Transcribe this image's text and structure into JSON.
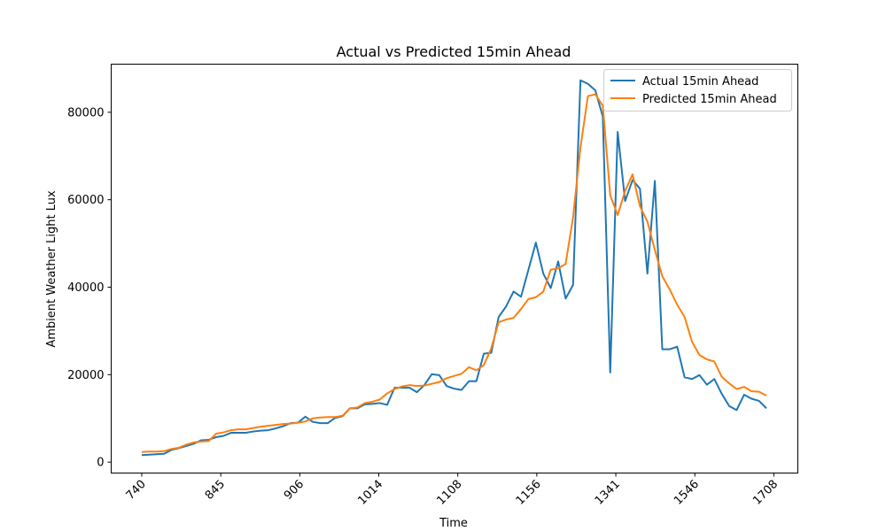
{
  "chart_data": {
    "type": "line",
    "title": "Actual vs Predicted 15min Ahead",
    "xlabel": "Time",
    "ylabel": "Ambient Weather Light Lux",
    "x_tick_labels": [
      "740",
      "845",
      "906",
      "1014",
      "1108",
      "1156",
      "1341",
      "1546",
      "1708"
    ],
    "x_tick_rotation_deg": 45,
    "ylim": [
      -2500,
      91000
    ],
    "y_ticks": [
      0,
      20000,
      40000,
      60000,
      80000
    ],
    "y_tick_labels": [
      "0",
      "20000",
      "40000",
      "60000",
      "80000"
    ],
    "legend_position": "top-right",
    "series": [
      {
        "name": "Actual 15min Ahead",
        "color": "#1f77b4",
        "values": [
          1600,
          1700,
          1800,
          1900,
          2800,
          3200,
          3700,
          4200,
          5000,
          5100,
          5700,
          6000,
          6700,
          6700,
          6700,
          7000,
          7200,
          7300,
          7700,
          8200,
          8900,
          9000,
          10400,
          9200,
          8900,
          8900,
          10100,
          10500,
          12300,
          12300,
          13200,
          13300,
          13500,
          13100,
          17000,
          17000,
          17000,
          16000,
          17600,
          20100,
          19900,
          17400,
          16800,
          16500,
          18500,
          18500,
          24800,
          25000,
          33200,
          35600,
          39000,
          37800,
          44000,
          50200,
          43100,
          39800,
          45900,
          37400,
          40500,
          87300,
          86500,
          85000,
          79000,
          20500,
          75500,
          59700,
          64500,
          62500,
          43100,
          64300,
          25800,
          25800,
          26400,
          19400,
          19000,
          19900,
          17700,
          19000,
          15600,
          12800,
          11900,
          15400,
          14500,
          14000,
          12300
        ]
      },
      {
        "name": "Predicted 15min Ahead",
        "color": "#ff7f0e",
        "values": [
          2300,
          2400,
          2400,
          2500,
          3000,
          3300,
          4000,
          4500,
          4700,
          4800,
          6500,
          6800,
          7300,
          7500,
          7500,
          7800,
          8100,
          8300,
          8500,
          8700,
          8800,
          9000,
          9300,
          10000,
          10200,
          10300,
          10300,
          10600,
          12300,
          12500,
          13500,
          13800,
          14300,
          15700,
          16700,
          17300,
          17600,
          17400,
          17500,
          17900,
          18300,
          19200,
          19700,
          20200,
          21700,
          21000,
          22200,
          26000,
          32000,
          32600,
          33000,
          35000,
          37300,
          37700,
          39000,
          44000,
          44300,
          45300,
          56000,
          72000,
          83700,
          84100,
          81500,
          61000,
          56500,
          62000,
          65800,
          58500,
          55000,
          48500,
          42500,
          39500,
          36000,
          33200,
          27500,
          24500,
          23500,
          23000,
          19500,
          18000,
          16700,
          17200,
          16200,
          16100,
          15200
        ]
      }
    ]
  }
}
